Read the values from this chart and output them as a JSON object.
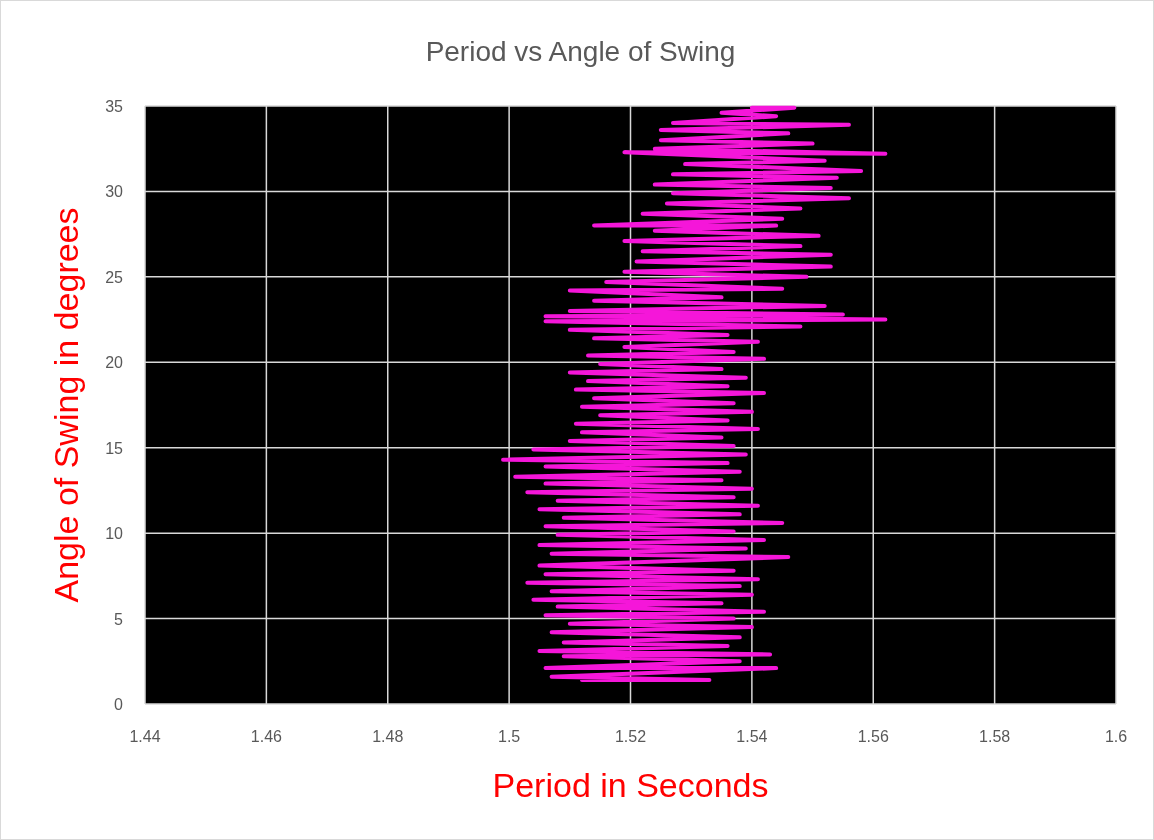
{
  "chart_data": {
    "type": "line",
    "title": "Period vs Angle of Swing",
    "xlabel": "Period in Seconds",
    "ylabel": "Angle of Swing in degrees",
    "xlim": [
      1.44,
      1.6
    ],
    "xticks": [
      1.44,
      1.46,
      1.48,
      1.5,
      1.52,
      1.54,
      1.56,
      1.58,
      1.6
    ],
    "ylim": [
      0,
      35
    ],
    "yticks": [
      0,
      5,
      10,
      15,
      20,
      25,
      30,
      35
    ],
    "grid": true,
    "marker": "none",
    "line_style": "solid",
    "x": [
      1.512,
      1.533,
      1.507,
      1.544,
      1.506,
      1.538,
      1.509,
      1.543,
      1.505,
      1.536,
      1.509,
      1.538,
      1.507,
      1.54,
      1.51,
      1.537,
      1.506,
      1.542,
      1.508,
      1.535,
      1.504,
      1.54,
      1.507,
      1.538,
      1.503,
      1.541,
      1.506,
      1.537,
      1.505,
      1.546,
      1.507,
      1.539,
      1.505,
      1.542,
      1.508,
      1.537,
      1.506,
      1.545,
      1.509,
      1.538,
      1.505,
      1.541,
      1.508,
      1.537,
      1.503,
      1.54,
      1.506,
      1.535,
      1.501,
      1.538,
      1.506,
      1.536,
      1.499,
      1.539,
      1.504,
      1.537,
      1.51,
      1.535,
      1.512,
      1.541,
      1.511,
      1.536,
      1.515,
      1.54,
      1.512,
      1.537,
      1.514,
      1.542,
      1.511,
      1.536,
      1.513,
      1.539,
      1.51,
      1.535,
      1.515,
      1.542,
      1.513,
      1.537,
      1.519,
      1.541,
      1.514,
      1.536,
      1.51,
      1.548,
      1.506,
      1.562,
      1.506,
      1.555,
      1.51,
      1.552,
      1.514,
      1.535,
      1.51,
      1.545,
      1.516,
      1.549,
      1.519,
      1.553,
      1.521,
      1.553,
      1.522,
      1.548,
      1.519,
      1.551,
      1.524,
      1.544,
      1.514,
      1.545,
      1.522,
      1.548,
      1.526,
      1.556,
      1.527,
      1.553,
      1.524,
      1.554,
      1.527,
      1.558,
      1.529,
      1.552,
      1.519,
      1.562,
      1.524,
      1.55,
      1.525,
      1.546,
      1.525,
      1.556,
      1.527,
      1.544,
      1.535,
      1.547,
      1.54
    ],
    "series": [
      {
        "color": "#f516d9",
        "values": [
          1.4,
          1.4,
          1.6,
          2.1,
          2.1,
          2.5,
          2.8,
          2.9,
          3.1,
          3.4,
          3.6,
          3.9,
          4.2,
          4.5,
          4.7,
          5.0,
          5.2,
          5.4,
          5.7,
          5.9,
          6.1,
          6.4,
          6.6,
          6.9,
          7.1,
          7.3,
          7.6,
          7.8,
          8.1,
          8.6,
          8.8,
          9.1,
          9.3,
          9.6,
          9.9,
          10.1,
          10.4,
          10.6,
          10.9,
          11.1,
          11.4,
          11.6,
          11.9,
          12.1,
          12.4,
          12.6,
          12.9,
          13.1,
          13.3,
          13.6,
          13.9,
          14.1,
          14.3,
          14.6,
          14.9,
          15.1,
          15.4,
          15.6,
          15.9,
          16.1,
          16.4,
          16.6,
          16.9,
          17.1,
          17.4,
          17.6,
          17.9,
          18.2,
          18.4,
          18.6,
          18.9,
          19.1,
          19.4,
          19.6,
          19.9,
          20.2,
          20.4,
          20.6,
          20.9,
          21.2,
          21.4,
          21.6,
          21.9,
          22.1,
          22.4,
          22.5,
          22.7,
          22.8,
          23.0,
          23.3,
          23.6,
          23.8,
          24.2,
          24.3,
          24.7,
          25.0,
          25.3,
          25.6,
          25.9,
          26.3,
          26.5,
          26.8,
          27.1,
          27.4,
          27.7,
          28.0,
          28.0,
          28.4,
          28.7,
          29.0,
          29.3,
          29.6,
          29.9,
          30.2,
          30.4,
          30.8,
          31.0,
          31.2,
          31.6,
          31.8,
          32.3,
          32.2,
          32.5,
          32.8,
          33.0,
          33.4,
          33.6,
          33.9,
          34.0,
          34.4,
          34.6,
          34.9,
          34.9
        ]
      }
    ]
  }
}
